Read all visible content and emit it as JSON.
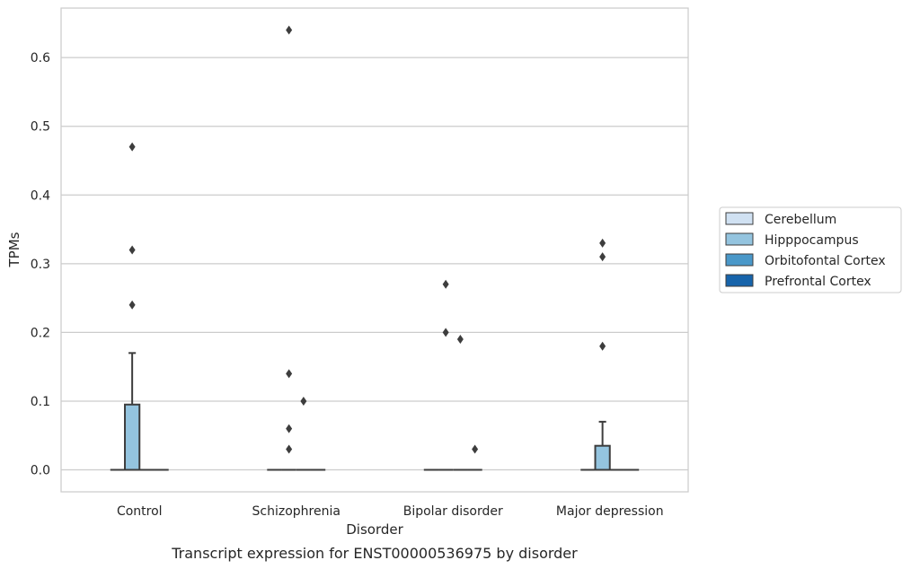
{
  "chart_data": {
    "type": "box",
    "title": "Transcript expression for ENST00000536975 by disorder",
    "xlabel": "Disorder",
    "ylabel": "TPMs",
    "ylim": [
      -0.032,
      0.672
    ],
    "yticks": [
      0.0,
      0.1,
      0.2,
      0.3,
      0.4,
      0.5,
      0.6
    ],
    "ytick_labels": [
      "0.0",
      "0.1",
      "0.2",
      "0.3",
      "0.4",
      "0.5",
      "0.6"
    ],
    "grid": "horizontal",
    "legend_position": "right",
    "categories": [
      "Control",
      "Schizophrenia",
      "Bipolar disorder",
      "Major depression"
    ],
    "series": [
      {
        "name": "Cerebellum",
        "color": "#d0e1f2",
        "boxes": [
          {
            "q1": 0,
            "median": 0,
            "q3": 0,
            "whisker_low": 0,
            "whisker_high": 0,
            "outliers": []
          },
          {
            "q1": 0,
            "median": 0,
            "q3": 0,
            "whisker_low": 0,
            "whisker_high": 0,
            "outliers": []
          },
          {
            "q1": 0,
            "median": 0,
            "q3": 0,
            "whisker_low": 0,
            "whisker_high": 0,
            "outliers": []
          },
          {
            "q1": 0,
            "median": 0,
            "q3": 0,
            "whisker_low": 0,
            "whisker_high": 0,
            "outliers": []
          }
        ]
      },
      {
        "name": "Hipppocampus",
        "color": "#94c4df",
        "boxes": [
          {
            "q1": 0,
            "median": 0,
            "q3": 0.095,
            "whisker_low": 0,
            "whisker_high": 0.17,
            "outliers": [
              0.24,
              0.32,
              0.47
            ]
          },
          {
            "q1": 0,
            "median": 0,
            "q3": 0,
            "whisker_low": 0,
            "whisker_high": 0,
            "outliers": [
              0.03,
              0.06,
              0.14,
              0.64
            ]
          },
          {
            "q1": 0,
            "median": 0,
            "q3": 0,
            "whisker_low": 0,
            "whisker_high": 0,
            "outliers": [
              0.2,
              0.27
            ]
          },
          {
            "q1": 0,
            "median": 0,
            "q3": 0.035,
            "whisker_low": 0,
            "whisker_high": 0.07,
            "outliers": [
              0.18,
              0.31,
              0.33
            ]
          }
        ]
      },
      {
        "name": "Orbitofontal Cortex",
        "color": "#4a98c9",
        "boxes": [
          {
            "q1": 0,
            "median": 0,
            "q3": 0,
            "whisker_low": 0,
            "whisker_high": 0,
            "outliers": []
          },
          {
            "q1": 0,
            "median": 0,
            "q3": 0,
            "whisker_low": 0,
            "whisker_high": 0,
            "outliers": [
              0.1
            ]
          },
          {
            "q1": 0,
            "median": 0,
            "q3": 0,
            "whisker_low": 0,
            "whisker_high": 0,
            "outliers": [
              0.19
            ]
          },
          {
            "q1": 0,
            "median": 0,
            "q3": 0,
            "whisker_low": 0,
            "whisker_high": 0,
            "outliers": []
          }
        ]
      },
      {
        "name": "Prefrontal Cortex",
        "color": "#1764ab",
        "boxes": [
          {
            "q1": 0,
            "median": 0,
            "q3": 0,
            "whisker_low": 0,
            "whisker_high": 0,
            "outliers": []
          },
          {
            "q1": 0,
            "median": 0,
            "q3": 0,
            "whisker_low": 0,
            "whisker_high": 0,
            "outliers": []
          },
          {
            "q1": 0,
            "median": 0,
            "q3": 0,
            "whisker_low": 0,
            "whisker_high": 0,
            "outliers": [
              0.03
            ]
          },
          {
            "q1": 0,
            "median": 0,
            "q3": 0,
            "whisker_low": 0,
            "whisker_high": 0,
            "outliers": []
          }
        ]
      }
    ]
  }
}
